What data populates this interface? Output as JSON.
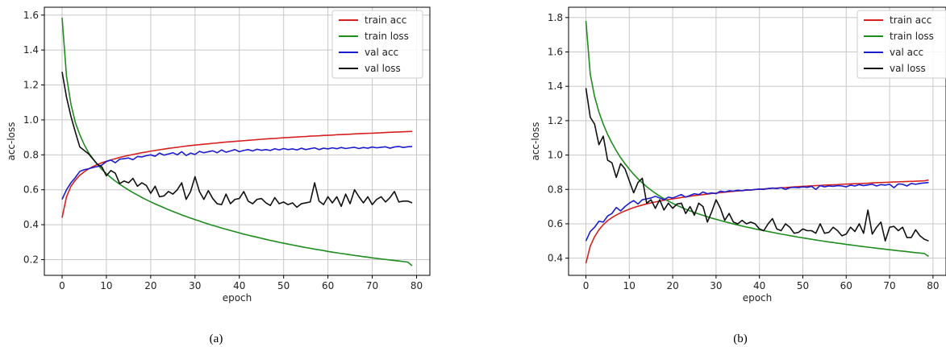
{
  "chart_data": [
    {
      "type": "line",
      "caption": "(a)",
      "xlabel": "epoch",
      "ylabel": "acc-loss",
      "xlim": [
        -4,
        83
      ],
      "ylim": [
        0.11,
        1.645
      ],
      "xticks": [
        0,
        10,
        20,
        30,
        40,
        50,
        60,
        70,
        80
      ],
      "yticks": [
        0.2,
        0.4,
        0.6,
        0.8,
        1.0,
        1.2,
        1.4,
        1.6
      ],
      "ytick_labels": [
        "0.2",
        "0.4",
        "0.6",
        "0.8",
        "1.0",
        "1.2",
        "1.4",
        "1.6"
      ],
      "grid": true,
      "legend": "top-right",
      "series": [
        {
          "name": "train acc",
          "color": "#d62020",
          "values": [
            0.44,
            0.56,
            0.62,
            0.655,
            0.683,
            0.703,
            0.72,
            0.733,
            0.745,
            0.755,
            0.763,
            0.771,
            0.778,
            0.785,
            0.791,
            0.797,
            0.802,
            0.807,
            0.812,
            0.816,
            0.821,
            0.825,
            0.829,
            0.833,
            0.837,
            0.84,
            0.843,
            0.847,
            0.85,
            0.853,
            0.856,
            0.858,
            0.861,
            0.863,
            0.866,
            0.868,
            0.871,
            0.873,
            0.875,
            0.877,
            0.879,
            0.881,
            0.883,
            0.885,
            0.887,
            0.889,
            0.891,
            0.893,
            0.894,
            0.896,
            0.898,
            0.899,
            0.901,
            0.902,
            0.904,
            0.905,
            0.907,
            0.908,
            0.909,
            0.911,
            0.912,
            0.913,
            0.915,
            0.916,
            0.917,
            0.918,
            0.92,
            0.921,
            0.922,
            0.923,
            0.924,
            0.925,
            0.926,
            0.928,
            0.929,
            0.93,
            0.931,
            0.932,
            0.933,
            0.934
          ]
        },
        {
          "name": "train loss",
          "color": "#1f8c1f",
          "values": [
            1.585,
            1.25,
            1.09,
            0.985,
            0.915,
            0.858,
            0.812,
            0.776,
            0.744,
            0.716,
            0.692,
            0.67,
            0.65,
            0.632,
            0.615,
            0.599,
            0.584,
            0.57,
            0.556,
            0.543,
            0.531,
            0.519,
            0.508,
            0.497,
            0.486,
            0.476,
            0.466,
            0.456,
            0.447,
            0.438,
            0.429,
            0.421,
            0.412,
            0.404,
            0.396,
            0.389,
            0.381,
            0.374,
            0.367,
            0.36,
            0.353,
            0.346,
            0.34,
            0.334,
            0.328,
            0.322,
            0.316,
            0.31,
            0.305,
            0.299,
            0.294,
            0.289,
            0.284,
            0.279,
            0.274,
            0.269,
            0.265,
            0.26,
            0.256,
            0.252,
            0.247,
            0.243,
            0.239,
            0.235,
            0.232,
            0.228,
            0.224,
            0.221,
            0.217,
            0.214,
            0.21,
            0.207,
            0.204,
            0.201,
            0.198,
            0.195,
            0.192,
            0.189,
            0.186,
            0.165
          ]
        },
        {
          "name": "val acc",
          "color": "#1c1ccf",
          "values": [
            0.545,
            0.6,
            0.64,
            0.67,
            0.705,
            0.715,
            0.72,
            0.728,
            0.733,
            0.742,
            0.762,
            0.77,
            0.755,
            0.775,
            0.778,
            0.782,
            0.772,
            0.79,
            0.788,
            0.795,
            0.8,
            0.792,
            0.81,
            0.798,
            0.805,
            0.812,
            0.8,
            0.818,
            0.796,
            0.81,
            0.802,
            0.82,
            0.812,
            0.818,
            0.823,
            0.812,
            0.828,
            0.815,
            0.822,
            0.83,
            0.818,
            0.825,
            0.83,
            0.822,
            0.832,
            0.826,
            0.83,
            0.825,
            0.835,
            0.828,
            0.836,
            0.83,
            0.834,
            0.828,
            0.838,
            0.83,
            0.835,
            0.84,
            0.83,
            0.838,
            0.834,
            0.84,
            0.835,
            0.842,
            0.836,
            0.84,
            0.843,
            0.836,
            0.842,
            0.838,
            0.845,
            0.84,
            0.843,
            0.846,
            0.838,
            0.845,
            0.848,
            0.842,
            0.846,
            0.848
          ]
        },
        {
          "name": "val loss",
          "color": "#111111",
          "values": [
            1.275,
            1.13,
            1.02,
            0.93,
            0.845,
            0.825,
            0.805,
            0.775,
            0.745,
            0.73,
            0.68,
            0.71,
            0.695,
            0.635,
            0.65,
            0.64,
            0.665,
            0.62,
            0.64,
            0.625,
            0.58,
            0.62,
            0.56,
            0.565,
            0.59,
            0.575,
            0.6,
            0.64,
            0.545,
            0.59,
            0.675,
            0.59,
            0.545,
            0.595,
            0.55,
            0.52,
            0.515,
            0.575,
            0.52,
            0.545,
            0.55,
            0.59,
            0.535,
            0.52,
            0.545,
            0.55,
            0.525,
            0.51,
            0.555,
            0.52,
            0.53,
            0.515,
            0.525,
            0.5,
            0.52,
            0.525,
            0.53,
            0.64,
            0.535,
            0.515,
            0.56,
            0.525,
            0.56,
            0.505,
            0.575,
            0.52,
            0.6,
            0.56,
            0.525,
            0.56,
            0.515,
            0.545,
            0.56,
            0.53,
            0.555,
            0.59,
            0.53,
            0.535,
            0.535,
            0.525
          ]
        }
      ]
    },
    {
      "type": "line",
      "caption": "(b)",
      "xlabel": "epoch",
      "ylabel": "acc-loss",
      "xlim": [
        -4,
        83
      ],
      "ylim": [
        0.3,
        1.86
      ],
      "xticks": [
        0,
        10,
        20,
        30,
        40,
        50,
        60,
        70,
        80
      ],
      "yticks": [
        0.4,
        0.6,
        0.8,
        1.0,
        1.2,
        1.4,
        1.6,
        1.8
      ],
      "ytick_labels": [
        "0.4",
        "0.6",
        "0.8",
        "1.0",
        "1.2",
        "1.4",
        "1.6",
        "1.8"
      ],
      "grid": true,
      "legend": "top-right",
      "series": [
        {
          "name": "train acc",
          "color": "#d62020",
          "values": [
            0.37,
            0.47,
            0.525,
            0.565,
            0.595,
            0.618,
            0.636,
            0.651,
            0.664,
            0.675,
            0.685,
            0.694,
            0.702,
            0.709,
            0.716,
            0.722,
            0.727,
            0.732,
            0.737,
            0.741,
            0.745,
            0.749,
            0.753,
            0.757,
            0.76,
            0.764,
            0.767,
            0.77,
            0.773,
            0.776,
            0.779,
            0.781,
            0.784,
            0.786,
            0.789,
            0.791,
            0.793,
            0.795,
            0.797,
            0.799,
            0.801,
            0.803,
            0.805,
            0.807,
            0.808,
            0.81,
            0.811,
            0.813,
            0.815,
            0.816,
            0.818,
            0.819,
            0.821,
            0.822,
            0.823,
            0.825,
            0.826,
            0.827,
            0.828,
            0.83,
            0.831,
            0.832,
            0.833,
            0.834,
            0.835,
            0.836,
            0.838,
            0.839,
            0.84,
            0.841,
            0.842,
            0.843,
            0.844,
            0.845,
            0.846,
            0.847,
            0.848,
            0.849,
            0.85,
            0.855
          ]
        },
        {
          "name": "train loss",
          "color": "#1f8c1f",
          "values": [
            1.78,
            1.47,
            1.34,
            1.25,
            1.18,
            1.12,
            1.07,
            1.025,
            0.985,
            0.95,
            0.918,
            0.888,
            0.862,
            0.838,
            0.816,
            0.796,
            0.778,
            0.761,
            0.746,
            0.732,
            0.719,
            0.707,
            0.696,
            0.685,
            0.675,
            0.666,
            0.657,
            0.649,
            0.641,
            0.633,
            0.626,
            0.619,
            0.612,
            0.606,
            0.599,
            0.593,
            0.587,
            0.581,
            0.576,
            0.57,
            0.565,
            0.56,
            0.555,
            0.55,
            0.545,
            0.54,
            0.536,
            0.531,
            0.527,
            0.522,
            0.518,
            0.514,
            0.51,
            0.506,
            0.502,
            0.498,
            0.494,
            0.491,
            0.487,
            0.484,
            0.48,
            0.477,
            0.474,
            0.47,
            0.467,
            0.464,
            0.461,
            0.458,
            0.455,
            0.452,
            0.449,
            0.446,
            0.443,
            0.441,
            0.438,
            0.435,
            0.432,
            0.43,
            0.427,
            0.41
          ]
        },
        {
          "name": "val acc",
          "color": "#1c1ccf",
          "values": [
            0.5,
            0.555,
            0.58,
            0.615,
            0.61,
            0.645,
            0.66,
            0.695,
            0.675,
            0.7,
            0.72,
            0.735,
            0.715,
            0.74,
            0.745,
            0.75,
            0.76,
            0.75,
            0.74,
            0.755,
            0.75,
            0.76,
            0.77,
            0.755,
            0.765,
            0.775,
            0.77,
            0.785,
            0.775,
            0.78,
            0.775,
            0.79,
            0.785,
            0.792,
            0.79,
            0.795,
            0.792,
            0.798,
            0.796,
            0.8,
            0.802,
            0.8,
            0.805,
            0.808,
            0.805,
            0.81,
            0.8,
            0.81,
            0.812,
            0.81,
            0.815,
            0.812,
            0.818,
            0.8,
            0.822,
            0.815,
            0.82,
            0.818,
            0.822,
            0.82,
            0.815,
            0.825,
            0.82,
            0.828,
            0.822,
            0.826,
            0.83,
            0.82,
            0.828,
            0.825,
            0.83,
            0.81,
            0.832,
            0.83,
            0.82,
            0.835,
            0.83,
            0.835,
            0.838,
            0.84
          ]
        },
        {
          "name": "val loss",
          "color": "#111111",
          "values": [
            1.39,
            1.22,
            1.18,
            1.06,
            1.11,
            0.97,
            0.955,
            0.87,
            0.95,
            0.92,
            0.85,
            0.78,
            0.84,
            0.865,
            0.72,
            0.74,
            0.69,
            0.74,
            0.68,
            0.72,
            0.69,
            0.715,
            0.72,
            0.66,
            0.7,
            0.65,
            0.72,
            0.7,
            0.61,
            0.67,
            0.74,
            0.69,
            0.62,
            0.66,
            0.61,
            0.6,
            0.62,
            0.6,
            0.61,
            0.6,
            0.57,
            0.56,
            0.6,
            0.63,
            0.57,
            0.56,
            0.6,
            0.58,
            0.545,
            0.55,
            0.57,
            0.56,
            0.56,
            0.545,
            0.6,
            0.545,
            0.55,
            0.58,
            0.56,
            0.53,
            0.54,
            0.58,
            0.555,
            0.6,
            0.545,
            0.68,
            0.54,
            0.58,
            0.61,
            0.5,
            0.58,
            0.585,
            0.56,
            0.58,
            0.52,
            0.52,
            0.565,
            0.53,
            0.51,
            0.5
          ]
        }
      ]
    }
  ]
}
